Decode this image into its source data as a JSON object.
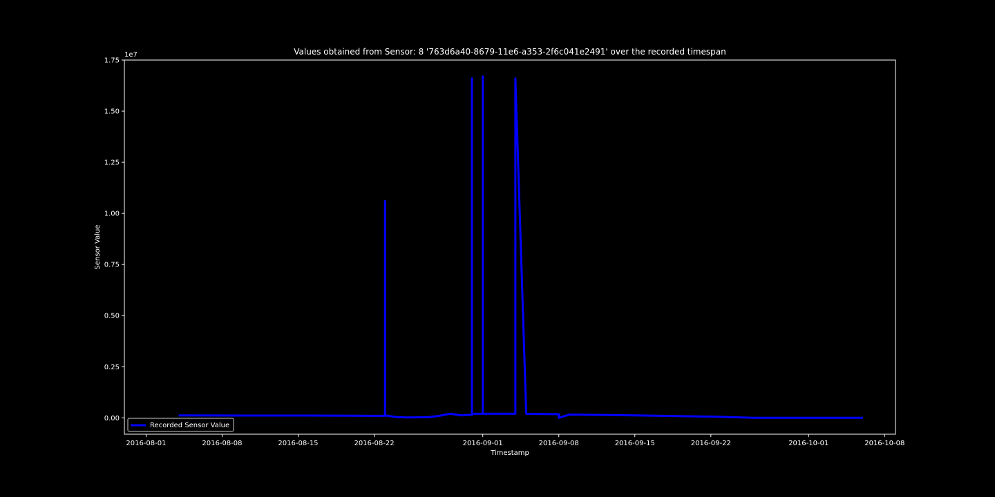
{
  "chart_data": {
    "type": "line",
    "title": "Values obtained from Sensor: 8 '763d6a40-8679-11e6-a353-2f6c041e2491' over the recorded timespan",
    "xlabel": "Timestamp",
    "ylabel": "Sensor Value",
    "y_offset_text": "1e7",
    "xlim": [
      "2016-07-30",
      "2016-10-09"
    ],
    "ylim": [
      -0.08,
      1.75
    ],
    "y_scale_factor": 10000000,
    "x_ticks": [
      "2016-08-01",
      "2016-08-08",
      "2016-08-15",
      "2016-08-22",
      "2016-09-01",
      "2016-09-08",
      "2016-09-15",
      "2016-09-22",
      "2016-10-01",
      "2016-10-08"
    ],
    "y_ticks": [
      "0.00",
      "0.25",
      "0.50",
      "0.75",
      "1.00",
      "1.25",
      "1.50",
      "1.75"
    ],
    "grid": false,
    "legend_position": "lower-left",
    "series": [
      {
        "name": "Recorded Sensor Value",
        "color": "#0000ff",
        "points": [
          [
            "2016-08-04",
            0.012
          ],
          [
            "2016-08-10",
            0.011
          ],
          [
            "2016-08-16",
            0.011
          ],
          [
            "2016-08-22",
            0.01
          ],
          [
            "2016-08-23",
            0.01
          ],
          [
            "2016-08-23",
            1.06
          ],
          [
            "2016-08-23",
            0.012
          ],
          [
            "2016-08-24",
            0.004
          ],
          [
            "2016-08-25",
            0.002
          ],
          [
            "2016-08-27",
            0.003
          ],
          [
            "2016-08-28",
            0.01
          ],
          [
            "2016-08-29",
            0.02
          ],
          [
            "2016-08-30",
            0.012
          ],
          [
            "2016-08-31",
            0.015
          ],
          [
            "2016-08-31",
            1.66
          ],
          [
            "2016-08-31",
            0.64
          ],
          [
            "2016-08-31",
            0.02
          ],
          [
            "2016-09-01",
            0.02
          ],
          [
            "2016-09-01",
            1.67
          ],
          [
            "2016-09-01",
            0.02
          ],
          [
            "2016-09-04",
            0.02
          ],
          [
            "2016-09-04",
            1.66
          ],
          [
            "2016-09-05",
            0.02
          ],
          [
            "2016-09-08",
            0.018
          ],
          [
            "2016-09-08",
            0.0
          ],
          [
            "2016-09-09",
            0.016
          ],
          [
            "2016-09-15",
            0.012
          ],
          [
            "2016-09-22",
            0.006
          ],
          [
            "2016-09-26",
            0.0
          ],
          [
            "2016-10-01",
            0.0
          ],
          [
            "2016-10-06",
            0.0
          ]
        ]
      }
    ]
  }
}
